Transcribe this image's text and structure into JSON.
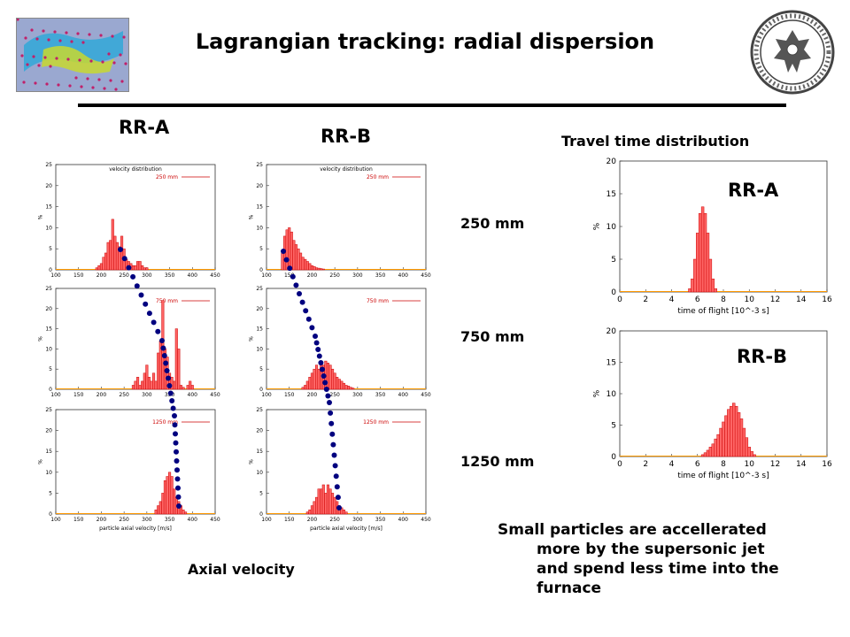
{
  "slide": {
    "title": "Lagrangian tracking: radial dispersion",
    "col_rra": "RR-A",
    "col_rrb": "RR-B",
    "travel_header": "Travel time distribution",
    "row_labels": [
      "250 mm",
      "750 mm",
      "1250 mm"
    ],
    "axial_label": "Axial velocity",
    "note_lines": [
      "Small particles are accellerated",
      "more by the supersonic jet",
      "and spend less time into the",
      "furnace"
    ],
    "rra_overlay": "RR-A",
    "rrb_overlay": "RR-B",
    "colors": {
      "bar": "#ff6666",
      "bar_edge": "#cc0000",
      "dots": "#00007f",
      "axis_line": "#ff9900"
    },
    "logo_icon": "particle-cloud-icon",
    "seal_icon": "university-seal-icon"
  },
  "chart_data": [
    {
      "id": "vel-rra-250",
      "type": "bar",
      "title": "velocity distribution",
      "legend": "250 mm",
      "xlabel": "",
      "ylabel": "%",
      "xlim": [
        100,
        450
      ],
      "ylim": [
        0,
        25
      ],
      "x_ticks": [
        100,
        150,
        200,
        250,
        300,
        350,
        400,
        450
      ],
      "y_ticks": [
        0,
        5,
        10,
        15,
        20,
        25
      ],
      "x": [
        190,
        195,
        200,
        205,
        210,
        215,
        220,
        225,
        230,
        235,
        240,
        245,
        250,
        255,
        260,
        265,
        270,
        275,
        280,
        285,
        290,
        295,
        300
      ],
      "values": [
        0.5,
        1,
        1.5,
        3,
        4,
        6.5,
        7,
        12,
        8,
        6.5,
        5.5,
        8,
        5,
        2.5,
        2,
        1.5,
        1,
        1,
        2,
        2,
        1,
        0.5,
        0.5
      ]
    },
    {
      "id": "vel-rrb-250",
      "type": "bar",
      "title": "velocity distribution",
      "legend": "250 mm",
      "xlabel": "",
      "ylabel": "%",
      "xlim": [
        100,
        450
      ],
      "ylim": [
        0,
        25
      ],
      "x_ticks": [
        100,
        150,
        200,
        250,
        300,
        350,
        400,
        450
      ],
      "y_ticks": [
        0,
        5,
        10,
        15,
        20,
        25
      ],
      "x": [
        135,
        140,
        145,
        150,
        155,
        160,
        165,
        170,
        175,
        180,
        185,
        190,
        195,
        200,
        205,
        210,
        215,
        220,
        225
      ],
      "values": [
        4,
        8,
        9.5,
        10,
        9,
        7,
        6,
        5,
        4,
        3,
        2.5,
        2,
        1.5,
        1,
        0.8,
        0.5,
        0.4,
        0.3,
        0.2
      ]
    },
    {
      "id": "vel-rra-750",
      "type": "bar",
      "title": "",
      "legend": "750 mm",
      "xlabel": "",
      "ylabel": "%",
      "xlim": [
        100,
        450
      ],
      "ylim": [
        0,
        25
      ],
      "x_ticks": [
        100,
        150,
        200,
        250,
        300,
        350,
        400,
        450
      ],
      "y_ticks": [
        0,
        5,
        10,
        15,
        20,
        25
      ],
      "x": [
        270,
        275,
        280,
        285,
        290,
        295,
        300,
        305,
        310,
        315,
        320,
        325,
        330,
        335,
        340,
        345,
        350,
        355,
        360,
        365,
        370,
        375,
        380,
        385,
        390,
        395,
        400
      ],
      "values": [
        1,
        2,
        3,
        1,
        2,
        4,
        6,
        3,
        2,
        4,
        2,
        9,
        12,
        22,
        10,
        8,
        4,
        3,
        2,
        15,
        10,
        1,
        0.5,
        0,
        1,
        2,
        1
      ]
    },
    {
      "id": "vel-rrb-750",
      "type": "bar",
      "title": "",
      "legend": "750 mm",
      "xlabel": "",
      "ylabel": "%",
      "xlim": [
        100,
        450
      ],
      "ylim": [
        0,
        25
      ],
      "x_ticks": [
        100,
        150,
        200,
        250,
        300,
        350,
        400,
        450
      ],
      "y_ticks": [
        0,
        5,
        10,
        15,
        20,
        25
      ],
      "x": [
        180,
        185,
        190,
        195,
        200,
        205,
        210,
        215,
        220,
        225,
        230,
        235,
        240,
        245,
        250,
        255,
        260,
        265,
        270,
        275,
        280,
        285,
        290
      ],
      "values": [
        0.5,
        1,
        2,
        3,
        4,
        5,
        6,
        5,
        7,
        6,
        7,
        6.5,
        6,
        5,
        4,
        3,
        2.5,
        2,
        1.5,
        1,
        0.8,
        0.5,
        0.3
      ]
    },
    {
      "id": "vel-rra-1250",
      "type": "bar",
      "title": "",
      "legend": "1250 mm",
      "xlabel": "particle axial velocity [m/s]",
      "ylabel": "%",
      "xlim": [
        100,
        450
      ],
      "ylim": [
        0,
        25
      ],
      "x_ticks": [
        100,
        150,
        200,
        250,
        300,
        350,
        400,
        450
      ],
      "y_ticks": [
        0,
        5,
        10,
        15,
        20,
        25
      ],
      "x": [
        320,
        325,
        330,
        335,
        340,
        345,
        350,
        355,
        360,
        365,
        370,
        375,
        380,
        385
      ],
      "values": [
        1,
        2,
        3,
        5,
        8,
        9,
        10,
        9,
        6,
        4,
        3,
        2,
        1,
        0.5
      ]
    },
    {
      "id": "vel-rrb-1250",
      "type": "bar",
      "title": "",
      "legend": "1250 mm",
      "xlabel": "particle axial velocity [m/s]",
      "ylabel": "%",
      "xlim": [
        100,
        450
      ],
      "ylim": [
        0,
        25
      ],
      "x_ticks": [
        100,
        150,
        200,
        250,
        300,
        350,
        400,
        450
      ],
      "y_ticks": [
        0,
        5,
        10,
        15,
        20,
        25
      ],
      "x": [
        190,
        195,
        200,
        205,
        210,
        215,
        220,
        225,
        230,
        235,
        240,
        245,
        250,
        255,
        260,
        265,
        270,
        275
      ],
      "values": [
        0.5,
        1,
        2,
        3,
        4,
        6,
        6,
        7,
        5,
        7,
        6,
        5,
        4,
        3,
        2,
        1.5,
        1,
        0.5
      ]
    },
    {
      "id": "tof-rra",
      "type": "bar",
      "title": "",
      "legend": "",
      "xlabel": "time of flight [10^-3 s]",
      "ylabel": "%",
      "xlim": [
        0,
        16
      ],
      "ylim": [
        0,
        20
      ],
      "x_ticks": [
        0,
        2,
        4,
        6,
        8,
        10,
        12,
        14,
        16
      ],
      "y_ticks": [
        0,
        5,
        10,
        15,
        20
      ],
      "x": [
        5.4,
        5.6,
        5.8,
        6.0,
        6.2,
        6.4,
        6.6,
        6.8,
        7.0,
        7.2,
        7.4
      ],
      "values": [
        0.5,
        2,
        5,
        9,
        12,
        13,
        12,
        9,
        5,
        2,
        0.5
      ]
    },
    {
      "id": "tof-rrb",
      "type": "bar",
      "title": "",
      "legend": "",
      "xlabel": "time of flight [10^-3 s]",
      "ylabel": "%",
      "xlim": [
        0,
        16
      ],
      "ylim": [
        0,
        20
      ],
      "x": [
        6.4,
        6.6,
        6.8,
        7.0,
        7.2,
        7.4,
        7.6,
        7.8,
        8.0,
        8.2,
        8.4,
        8.6,
        8.8,
        9.0,
        9.2,
        9.4,
        9.6,
        9.8,
        10.0,
        10.2,
        10.4
      ],
      "x_ticks": [
        0,
        2,
        4,
        6,
        8,
        10,
        12,
        14,
        16
      ],
      "y_ticks": [
        0,
        5,
        10,
        15,
        20
      ],
      "values": [
        0.3,
        0.6,
        1,
        1.5,
        2,
        2.8,
        3.5,
        4.5,
        5.5,
        6.5,
        7.5,
        8,
        8.5,
        8,
        7,
        6,
        4.5,
        3,
        1.5,
        0.8,
        0.3
      ]
    }
  ]
}
